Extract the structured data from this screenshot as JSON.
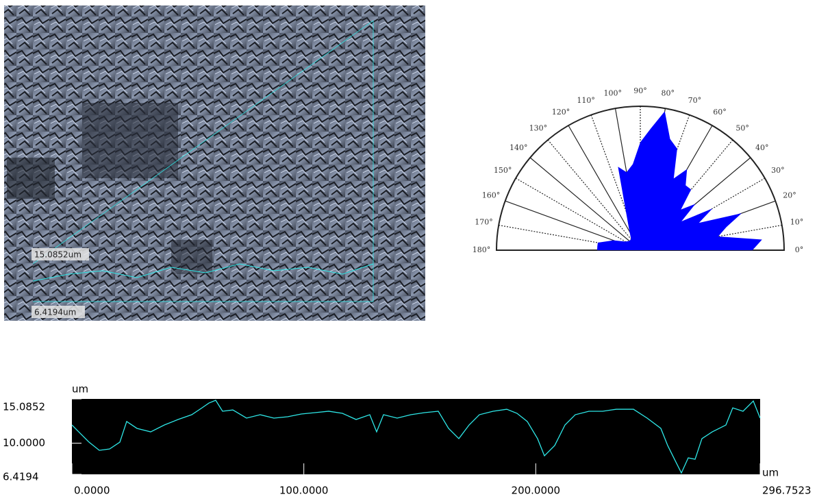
{
  "image": {
    "labels": [
      "15.0852um",
      "6.4194um"
    ]
  },
  "chart_data": [
    {
      "type": "polar",
      "color": "#0000ff",
      "rlim": [
        0,
        1
      ],
      "xticks": [
        {
          "value": 0,
          "label": "0°"
        },
        {
          "value": 10,
          "label": "10°"
        },
        {
          "value": 20,
          "label": "20°"
        },
        {
          "value": 30,
          "label": "30°"
        },
        {
          "value": 40,
          "label": "40°"
        },
        {
          "value": 50,
          "label": "50°"
        },
        {
          "value": 60,
          "label": "60°"
        },
        {
          "value": 70,
          "label": "70°"
        },
        {
          "value": 80,
          "label": "80°"
        },
        {
          "value": 90,
          "label": "90°"
        },
        {
          "value": 100,
          "label": "100°"
        },
        {
          "value": 110,
          "label": "110°"
        },
        {
          "value": 120,
          "label": "120°"
        },
        {
          "value": 130,
          "label": "130°"
        },
        {
          "value": 140,
          "label": "140°"
        },
        {
          "value": 150,
          "label": "150°"
        },
        {
          "value": 160,
          "label": "160°"
        },
        {
          "value": 170,
          "label": "170°"
        },
        {
          "value": 180,
          "label": "180°"
        }
      ],
      "x": [
        0,
        5,
        10,
        15,
        20,
        25,
        30,
        35,
        40,
        45,
        50,
        55,
        60,
        65,
        70,
        75,
        80,
        85,
        90,
        95,
        100,
        105,
        110,
        115,
        120,
        130,
        140,
        150,
        160,
        170,
        175,
        180
      ],
      "values": [
        0.78,
        0.85,
        0.55,
        0.62,
        0.75,
        0.45,
        0.58,
        0.35,
        0.5,
        0.4,
        0.55,
        0.55,
        0.65,
        0.55,
        0.75,
        0.8,
        0.98,
        0.85,
        0.75,
        0.6,
        0.55,
        0.6,
        0.3,
        0.2,
        0.15,
        0.1,
        0.1,
        0.12,
        0.2,
        0.3,
        0.3,
        0.3
      ]
    },
    {
      "type": "line",
      "color": "#2ee8e8",
      "ylabel": "um",
      "xlabel": "um",
      "xlim": [
        0,
        296.7523
      ],
      "ylim": [
        6.4194,
        15.0852
      ],
      "xticks": [
        {
          "value": 0,
          "label": "0.0000"
        },
        {
          "value": 100,
          "label": "100.0000"
        },
        {
          "value": 200,
          "label": "200.0000"
        },
        {
          "value": 296.7523,
          "label": "296.7523"
        }
      ],
      "yticks": [
        6.4194,
        {
          "value": 10,
          "label": "10.0000"
        },
        15.0852
      ],
      "x": [
        0,
        2.95,
        7.38,
        11.81,
        16.24,
        20.67,
        23.62,
        28.05,
        33.96,
        39.86,
        45.77,
        51.67,
        56.1,
        59.05,
        62.0,
        64.96,
        69.39,
        75.29,
        81.2,
        87.1,
        93.0,
        98.91,
        104.82,
        110.72,
        116.63,
        122.53,
        128.44,
        131.39,
        134.35,
        140.25,
        146.16,
        152.07,
        157.97,
        162.4,
        166.83,
        171.26,
        175.68,
        181.59,
        187.5,
        191.92,
        196.35,
        200.78,
        203.74,
        208.17,
        212.6,
        217.03,
        222.93,
        228.84,
        234.74,
        242.12,
        248.03,
        253.93,
        256.88,
        259.83,
        262.79,
        265.75,
        268.7,
        271.65,
        276.08,
        281.99,
        284.94,
        289.37,
        293.8,
        296.75
      ],
      "values": [
        12.09,
        11.3,
        10.12,
        9.18,
        9.33,
        10.12,
        12.49,
        11.7,
        11.3,
        12.09,
        12.72,
        13.27,
        14.06,
        14.61,
        14.93,
        13.67,
        13.82,
        12.88,
        13.27,
        12.88,
        13.04,
        13.35,
        13.51,
        13.67,
        13.43,
        12.72,
        13.27,
        11.3,
        13.27,
        12.88,
        13.27,
        13.51,
        13.67,
        11.7,
        10.52,
        12.09,
        13.27,
        13.67,
        13.9,
        13.43,
        12.49,
        10.52,
        8.55,
        9.73,
        12.09,
        13.27,
        13.67,
        13.67,
        13.9,
        13.9,
        12.88,
        11.7,
        9.73,
        8.15,
        6.58,
        8.31,
        8.15,
        10.52,
        11.3,
        12.09,
        14.06,
        13.67,
        14.85,
        12.88
      ]
    }
  ]
}
